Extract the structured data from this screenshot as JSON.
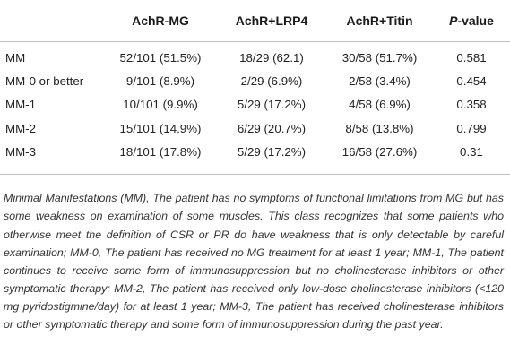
{
  "table": {
    "headers": [
      "",
      "AchR-MG",
      "AchR+LRP4",
      "AchR+Titin",
      "P-value"
    ],
    "header_pvalue_italic_part": "P",
    "header_pvalue_rest": "-value",
    "rows": [
      {
        "label": "MM",
        "cells": [
          "52/101 (51.5%)",
          "18/29 (62.1)",
          "30/58 (51.7%)",
          "0.581"
        ]
      },
      {
        "label": "MM-0 or better",
        "cells": [
          "9/101 (8.9%)",
          "2/29 (6.9%)",
          "2/58 (3.4%)",
          "0.454"
        ]
      },
      {
        "label": "MM-1",
        "cells": [
          "10/101 (9.9%)",
          "5/29 (17.2%)",
          "4/58 (6.9%)",
          "0.358"
        ]
      },
      {
        "label": "MM-2",
        "cells": [
          "15/101 (14.9%)",
          "6/29 (20.7%)",
          "8/58 (13.8%)",
          "0.799"
        ]
      },
      {
        "label": "MM-3",
        "cells": [
          "18/101 (17.8%)",
          "5/29 (17.2%)",
          "16/58 (27.6%)",
          "0.31"
        ]
      }
    ]
  },
  "footnote": "Minimal Manifestations (MM), The patient has no symptoms of functional limitations from MG but has some weakness on examination of some muscles. This class recognizes that some patients who otherwise meet the definition of CSR or PR do have weakness that is only detectable by careful examination; MM-0, The patient has received no MG treatment for at least 1 year; MM-1, The patient continues to receive some form of immunosuppression but no cholinesterase inhibitors or other symptomatic therapy; MM-2, The patient has received only low-dose cholinesterase inhibitors (<120 mg pyridostigmine/day) for at least 1 year; MM-3, The patient has received cholinesterase inhibitors or other symptomatic therapy and some form of immunosuppression during the past year."
}
